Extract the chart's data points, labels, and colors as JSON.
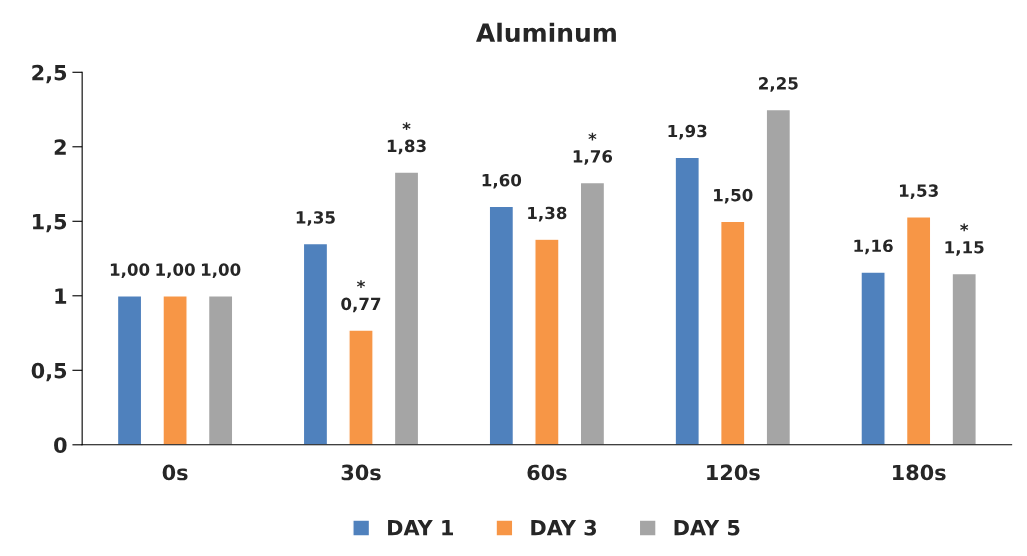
{
  "chart_data": {
    "type": "bar",
    "title": "Aluminum",
    "categories": [
      "0s",
      "30s",
      "60s",
      "120s",
      "180s"
    ],
    "series": [
      {
        "name": "DAY 1",
        "color": "#4f81bd",
        "values": [
          1.0,
          1.35,
          1.6,
          1.93,
          1.16
        ],
        "value_labels": [
          "1,00",
          "1,35",
          "1,60",
          "1,93",
          "1,16"
        ]
      },
      {
        "name": "DAY 3",
        "color": "#f79646",
        "values": [
          1.0,
          0.77,
          1.38,
          1.5,
          1.53
        ],
        "value_labels": [
          "1,00",
          "*\n0,77",
          "1,38",
          "1,50",
          "1,53"
        ]
      },
      {
        "name": "DAY 5",
        "color": "#a5a5a5",
        "values": [
          1.0,
          1.83,
          1.76,
          2.25,
          1.15
        ],
        "value_labels": [
          "1,00",
          "*\n1,83",
          "*\n1,76",
          "2,25",
          "*\n1,15"
        ]
      }
    ],
    "ylim": [
      0,
      2.5
    ],
    "yticks": [
      0,
      {
        "value": 0.5,
        "label": "0,5"
      },
      1,
      {
        "value": 1.5,
        "label": "1,5"
      },
      2,
      {
        "value": 2.5,
        "label": "2,5"
      }
    ],
    "grid": false,
    "legend": "bottom"
  }
}
